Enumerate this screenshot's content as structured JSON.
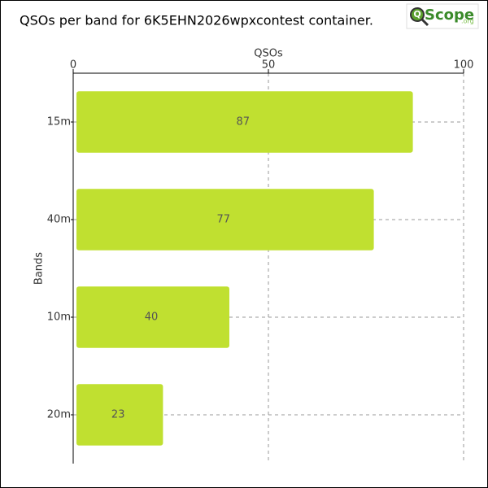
{
  "chart_data": {
    "type": "bar",
    "orientation": "horizontal",
    "title": "QSOs per band for 6K5EHN2026wpxcontest container.",
    "logo": {
      "mark": "Q",
      "name": "Scope",
      "suffix": ".org"
    },
    "x_label": "QSOs",
    "y_label": "Bands",
    "categories": [
      "15m",
      "40m",
      "10m",
      "20m"
    ],
    "values": [
      87,
      77,
      40,
      23
    ],
    "color": "#c0e030",
    "xlim": [
      0,
      100
    ],
    "xticks": [
      0,
      50,
      100
    ],
    "grid": true
  }
}
